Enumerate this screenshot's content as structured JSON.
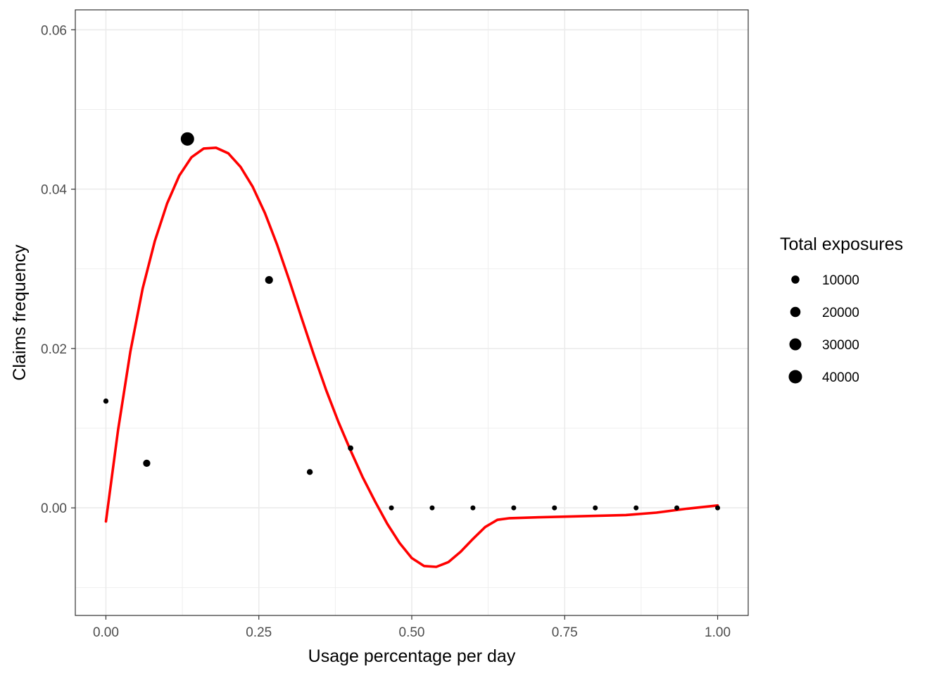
{
  "chart_data": {
    "type": "scatter",
    "xlabel": "Usage percentage per day",
    "ylabel": "Claims frequency",
    "xlim": [
      -0.05,
      1.05
    ],
    "ylim": [
      -0.0135,
      0.0625
    ],
    "x_ticks": [
      0.0,
      0.25,
      0.5,
      0.75,
      1.0
    ],
    "x_tick_labels": [
      "0.00",
      "0.25",
      "0.50",
      "0.75",
      "1.00"
    ],
    "y_ticks": [
      0.0,
      0.02,
      0.04,
      0.06
    ],
    "y_tick_labels": [
      "0.00",
      "0.02",
      "0.04",
      "0.06"
    ],
    "grid": true,
    "points": [
      {
        "x": 0.0,
        "y": 0.0134,
        "size": 2000
      },
      {
        "x": 0.0667,
        "y": 0.0056,
        "size": 7000
      },
      {
        "x": 0.1333,
        "y": 0.0463,
        "size": 40000
      },
      {
        "x": 0.2667,
        "y": 0.0286,
        "size": 9000
      },
      {
        "x": 0.3333,
        "y": 0.0045,
        "size": 3500
      },
      {
        "x": 0.4,
        "y": 0.0075,
        "size": 2500
      },
      {
        "x": 0.4667,
        "y": 0.0,
        "size": 500
      },
      {
        "x": 0.5333,
        "y": 0.0,
        "size": 500
      },
      {
        "x": 0.6,
        "y": 0.0,
        "size": 500
      },
      {
        "x": 0.6667,
        "y": 0.0,
        "size": 500
      },
      {
        "x": 0.7333,
        "y": 0.0,
        "size": 500
      },
      {
        "x": 0.8,
        "y": 0.0,
        "size": 500
      },
      {
        "x": 0.8667,
        "y": 0.0,
        "size": 500
      },
      {
        "x": 0.9333,
        "y": 0.0,
        "size": 500
      },
      {
        "x": 1.0,
        "y": 0.0,
        "size": 500
      }
    ],
    "fit_line": {
      "color": "#ff0000",
      "x": [
        0.0,
        0.02,
        0.04,
        0.06,
        0.08,
        0.1,
        0.12,
        0.14,
        0.16,
        0.18,
        0.2,
        0.22,
        0.24,
        0.26,
        0.28,
        0.3,
        0.32,
        0.34,
        0.36,
        0.38,
        0.4,
        0.42,
        0.44,
        0.46,
        0.48,
        0.5,
        0.52,
        0.54,
        0.56,
        0.58,
        0.6,
        0.62,
        0.64,
        0.66,
        0.7,
        0.75,
        0.8,
        0.85,
        0.9,
        0.95,
        1.0
      ],
      "y": [
        -0.0017,
        0.0098,
        0.0196,
        0.0275,
        0.0335,
        0.0382,
        0.0417,
        0.044,
        0.0451,
        0.0452,
        0.0445,
        0.0428,
        0.0403,
        0.037,
        0.033,
        0.0285,
        0.0238,
        0.0192,
        0.0148,
        0.0108,
        0.0072,
        0.0038,
        0.0008,
        -0.002,
        -0.0044,
        -0.0063,
        -0.0073,
        -0.0074,
        -0.0068,
        -0.0055,
        -0.0039,
        -0.0024,
        -0.0015,
        -0.0013,
        -0.0012,
        -0.0011,
        -0.001,
        -0.0009,
        -0.0006,
        -0.0001,
        0.0003
      ]
    },
    "legend": {
      "title": "Total exposures",
      "placement": "right",
      "items": [
        {
          "label": "10000",
          "size": 10000
        },
        {
          "label": "20000",
          "size": 20000
        },
        {
          "label": "30000",
          "size": 30000
        },
        {
          "label": "40000",
          "size": 40000
        }
      ]
    },
    "colors": {
      "points": "#000000",
      "grid": "#ebebeb",
      "panel_border": "#333333",
      "tick_text": "#4d4d4d"
    }
  }
}
